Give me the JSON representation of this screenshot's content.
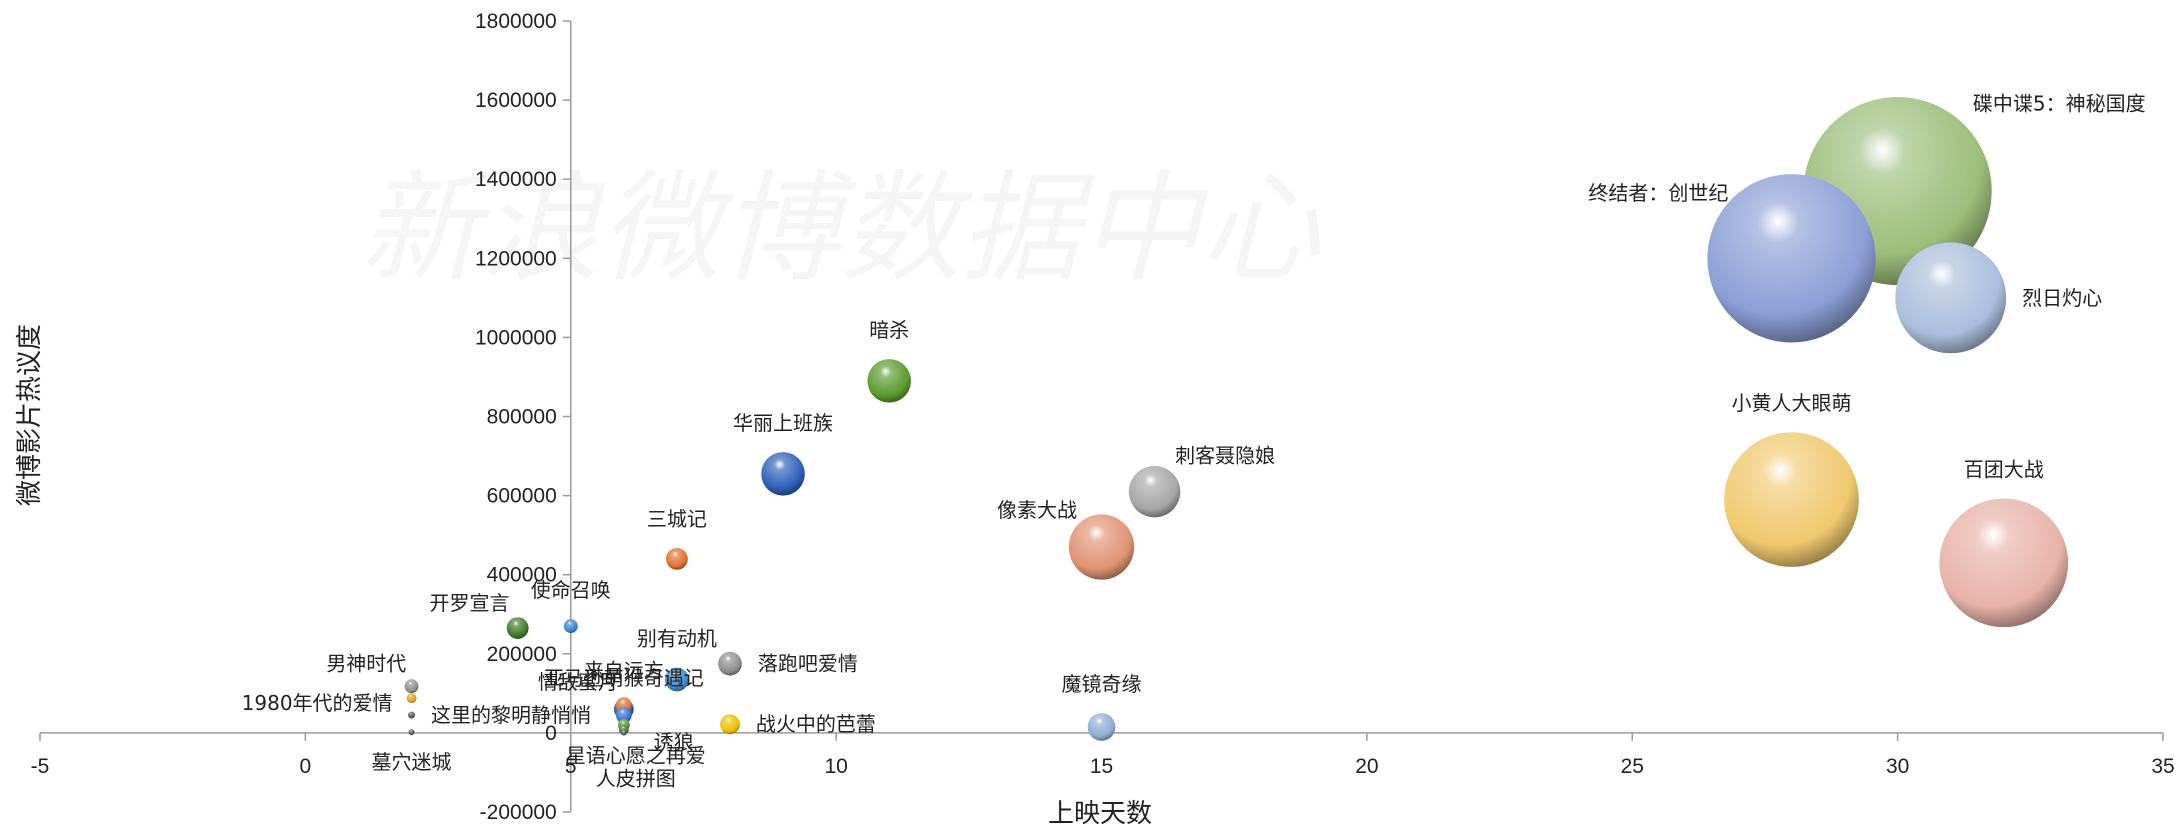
{
  "watermark": "新浪微博数据中心",
  "chart_data": {
    "type": "bubble",
    "xlabel": "上映天数",
    "ylabel": "微博影片热议度",
    "xlim": [
      -5,
      35
    ],
    "ylim": [
      -200000,
      1800000
    ],
    "x_ticks": [
      -5,
      0,
      5,
      10,
      15,
      20,
      25,
      30,
      35
    ],
    "y_ticks": [
      -200000,
      0,
      200000,
      400000,
      600000,
      800000,
      1000000,
      1200000,
      1400000,
      1600000,
      1800000
    ],
    "points": [
      {
        "name": "碟中谍5：神秘国度",
        "x": 30,
        "y": 1370000,
        "size": 9.5,
        "color": "#9bbf7a",
        "label_pos": "upper-right"
      },
      {
        "name": "终结者：创世纪",
        "x": 28,
        "y": 1200000,
        "size": 8.5,
        "color": "#8b9fd6",
        "label_pos": "upper-left"
      },
      {
        "name": "烈日灼心",
        "x": 31,
        "y": 1100000,
        "size": 5.6,
        "color": "#a9bedb",
        "label_pos": "right"
      },
      {
        "name": "小黄人大眼萌",
        "x": 28,
        "y": 590000,
        "size": 6.8,
        "color": "#efc96e",
        "label_pos": "above"
      },
      {
        "name": "百团大战",
        "x": 32,
        "y": 430000,
        "size": 6.5,
        "color": "#e7b3a8",
        "label_pos": "above"
      },
      {
        "name": "暗杀",
        "x": 11,
        "y": 890000,
        "size": 2.2,
        "color": "#5c9a2e",
        "label_pos": "above"
      },
      {
        "name": "华丽上班族",
        "x": 9,
        "y": 655000,
        "size": 2.2,
        "color": "#2d5fb8",
        "label_pos": "above"
      },
      {
        "name": "刺客聂隐娘",
        "x": 16,
        "y": 610000,
        "size": 2.6,
        "color": "#a6a6a6",
        "label_pos": "upper-right"
      },
      {
        "name": "像素大战",
        "x": 15,
        "y": 470000,
        "size": 3.3,
        "color": "#e09272",
        "label_pos": "upper-left"
      },
      {
        "name": "三城记",
        "x": 7,
        "y": 440000,
        "size": 1.1,
        "color": "#e0712d",
        "label_pos": "above"
      },
      {
        "name": "使命召唤",
        "x": 5,
        "y": 270000,
        "size": 0.7,
        "color": "#3f86c8",
        "label_pos": "above"
      },
      {
        "name": "开罗宣言",
        "x": 4,
        "y": 265000,
        "size": 1.1,
        "color": "#3e7a28",
        "label_pos": "upper-left"
      },
      {
        "name": "别有动机",
        "x": 7,
        "y": 135000,
        "size": 1.2,
        "color": "#3c8ad0",
        "label_pos": "above"
      },
      {
        "name": "落跑吧爱情",
        "x": 8,
        "y": 175000,
        "size": 1.2,
        "color": "#8e8e8e",
        "label_pos": "right"
      },
      {
        "name": "来自远方",
        "x": 6,
        "y": 60000,
        "size": 1.0,
        "color": "#2a5da3",
        "label_pos": "above"
      },
      {
        "name": "情敌蜜月",
        "x": 6,
        "y": 70000,
        "size": 0.8,
        "color": "#d9733a",
        "label_pos": "upper-left"
      },
      {
        "name": "亚马逊萌猴奇遇记",
        "x": 6,
        "y": 45000,
        "size": 0.8,
        "color": "#3a6fd0",
        "label_pos": "above"
      },
      {
        "name": "诱狼",
        "x": 6,
        "y": 20000,
        "size": 0.6,
        "color": "#5b9a2e",
        "label_pos": "below-right"
      },
      {
        "name": "星语心愿之再爱",
        "x": 6,
        "y": 8000,
        "size": 0.5,
        "color": "#3c7a30",
        "label_pos": "below-left"
      },
      {
        "name": "战火中的芭蕾",
        "x": 8,
        "y": 22000,
        "size": 1.0,
        "color": "#f0c000",
        "label_pos": "right"
      },
      {
        "name": "魔镜奇缘",
        "x": 15,
        "y": 15000,
        "size": 1.4,
        "color": "#8faed4",
        "label_pos": "above"
      },
      {
        "name": "男神时代",
        "x": 2,
        "y": 118000,
        "size": 0.7,
        "color": "#8e8e8e",
        "label_pos": "upper-left"
      },
      {
        "name": "1980年代的爱情",
        "x": 2,
        "y": 88000,
        "size": 0.5,
        "color": "#e0a020",
        "label_pos": "left"
      },
      {
        "name": "这里的黎明静悄悄",
        "x": 2,
        "y": 45000,
        "size": 0.35,
        "color": "#555555",
        "label_pos": "right"
      },
      {
        "name": "墓穴迷城",
        "x": 2,
        "y": 2000,
        "size": 0.2,
        "color": "#555555",
        "label_pos": "below"
      },
      {
        "name": "人皮拼图",
        "x": 6,
        "y": 1000,
        "size": 0.2,
        "color": "#555555",
        "label_pos": "below-far"
      }
    ]
  }
}
